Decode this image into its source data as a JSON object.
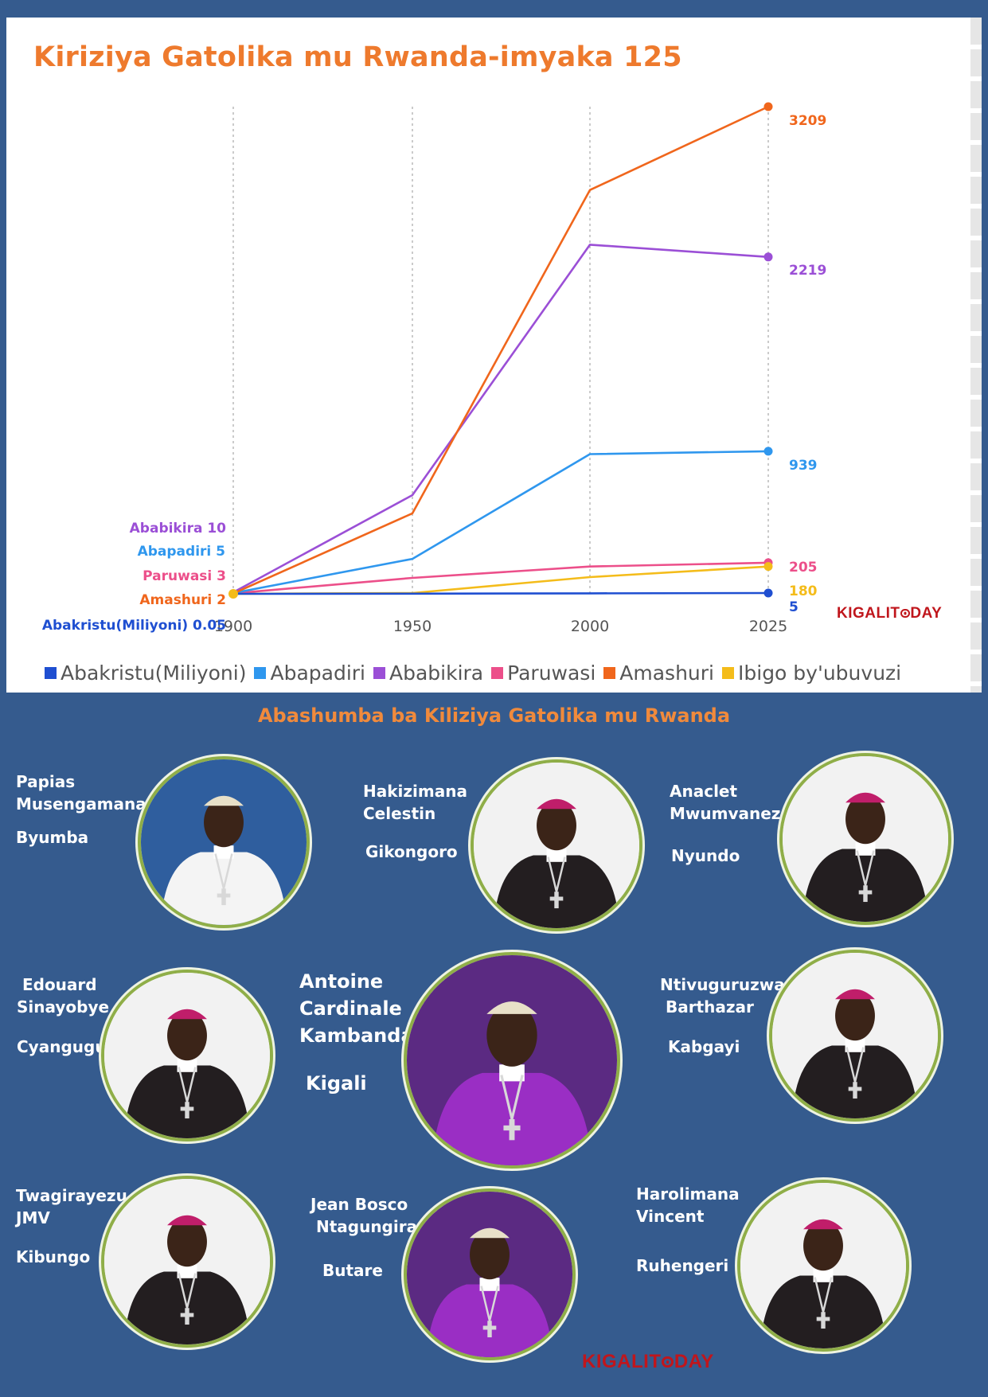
{
  "title": "Kiriziya Gatolika mu Rwanda-imyaka 125",
  "chart_data": {
    "type": "line",
    "x": [
      1900,
      1950,
      2000,
      2025
    ],
    "x_ticks": [
      "1900",
      "1950",
      "2000",
      "2025"
    ],
    "y_range": [
      0,
      3209
    ],
    "grid": "vertical dotted",
    "legend_position": "bottom",
    "series": [
      {
        "name": "Abakristu(Miliyoni)",
        "color": "#1f4fd1",
        "values": [
          0.05,
          1,
          3,
          5
        ],
        "start_label": "Abakristu(Miliyoni) 0.05",
        "end_label": "5"
      },
      {
        "name": "Abapadiri",
        "color": "#2f97ee",
        "values": [
          5,
          230,
          920,
          939
        ],
        "start_label": "Abapadiri 5",
        "end_label": "939"
      },
      {
        "name": "Ababikira",
        "color": "#9b4fd6",
        "values": [
          10,
          650,
          2300,
          2219
        ],
        "start_label": "Ababikira 10",
        "end_label": "2219"
      },
      {
        "name": "Paruwasi",
        "color": "#ec4f8a",
        "values": [
          3,
          105,
          180,
          205
        ],
        "start_label": "Paruwasi 3",
        "end_label": "205"
      },
      {
        "name": "Amashuri",
        "color": "#f0661c",
        "values": [
          2,
          530,
          2660,
          3209
        ],
        "start_label": "Amashuri 2",
        "end_label": "3209"
      },
      {
        "name": "Ibigo by'ubuvuzi",
        "color": "#f4bc1a",
        "values": [
          0,
          5,
          110,
          180
        ],
        "start_label": "",
        "end_label": "180"
      }
    ]
  },
  "watermark": {
    "text_before": "KIGALIT",
    "text_after": "DAY"
  },
  "section_title": "Abashumba ba Kiliziya Gatolika mu Rwanda",
  "bishops": [
    {
      "name": "Papias\nMusengamana",
      "diocese": "Byumba",
      "robe": "white"
    },
    {
      "name": "Hakizimana\nCelestin",
      "diocese": "Gikongoro",
      "robe": "black"
    },
    {
      "name": "Anaclet\nMwumvaneza",
      "diocese": "Nyundo",
      "robe": "black"
    },
    {
      "name": " Edouard\nSinayobye",
      "diocese": "Cyangugu",
      "robe": "black"
    },
    {
      "name": "Antoine\nCardinale\nKambanda",
      "diocese": "Kigali",
      "robe": "purple"
    },
    {
      "name": "Ntivuguruzwa\n Barthazar",
      "diocese": "Kabgayi",
      "robe": "black"
    },
    {
      "name": "Twagirayezu\nJMV",
      "diocese": "Kibungo",
      "robe": "black"
    },
    {
      "name": "Jean Bosco\n Ntagungira",
      "diocese": "Butare",
      "robe": "purple"
    },
    {
      "name": "Harolimana\nVincent",
      "diocese": "Ruhengeri",
      "robe": "black"
    }
  ]
}
